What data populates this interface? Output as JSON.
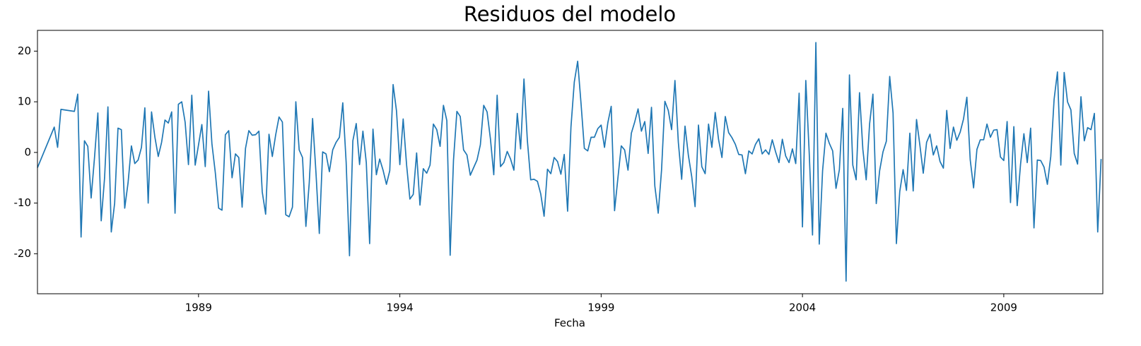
{
  "chart_data": {
    "type": "line",
    "title": "Residuos del modelo",
    "xlabel": "Fecha",
    "x": [
      1985.0,
      1985.417,
      1985.5,
      1985.583,
      1985.917,
      1986.0,
      1986.083,
      1986.167,
      1986.25,
      1986.333,
      1986.417,
      1986.5,
      1986.583,
      1986.667,
      1986.75,
      1986.833,
      1986.917,
      1987.0,
      1987.083,
      1987.167,
      1987.25,
      1987.333,
      1987.417,
      1987.5,
      1987.583,
      1987.667,
      1987.75,
      1987.833,
      1987.917,
      1988.0,
      1988.083,
      1988.167,
      1988.25,
      1988.333,
      1988.417,
      1988.5,
      1988.583,
      1988.667,
      1988.75,
      1988.833,
      1988.917,
      1989.0,
      1989.083,
      1989.167,
      1989.25,
      1989.333,
      1989.417,
      1989.5,
      1989.583,
      1989.667,
      1989.75,
      1989.833,
      1989.917,
      1990.0,
      1990.083,
      1990.167,
      1990.25,
      1990.333,
      1990.417,
      1990.5,
      1990.583,
      1990.667,
      1990.75,
      1990.833,
      1990.917,
      1991.0,
      1991.083,
      1991.167,
      1991.25,
      1991.333,
      1991.417,
      1991.5,
      1991.583,
      1991.667,
      1991.75,
      1991.833,
      1991.917,
      1992.0,
      1992.083,
      1992.167,
      1992.25,
      1992.333,
      1992.417,
      1992.5,
      1992.583,
      1992.667,
      1992.75,
      1992.833,
      1992.917,
      1993.0,
      1993.083,
      1993.167,
      1993.25,
      1993.333,
      1993.417,
      1993.5,
      1993.583,
      1993.667,
      1993.75,
      1993.833,
      1993.917,
      1994.0,
      1994.083,
      1994.167,
      1994.25,
      1994.333,
      1994.417,
      1994.5,
      1994.583,
      1994.667,
      1994.75,
      1994.833,
      1994.917,
      1995.0,
      1995.083,
      1995.167,
      1995.25,
      1995.333,
      1995.417,
      1995.5,
      1995.583,
      1995.667,
      1995.75,
      1995.833,
      1995.917,
      1996.0,
      1996.083,
      1996.167,
      1996.25,
      1996.333,
      1996.417,
      1996.5,
      1996.583,
      1996.667,
      1996.75,
      1996.833,
      1996.917,
      1997.0,
      1997.083,
      1997.167,
      1997.25,
      1997.333,
      1997.417,
      1997.5,
      1997.583,
      1997.667,
      1997.75,
      1997.833,
      1997.917,
      1998.0,
      1998.083,
      1998.167,
      1998.25,
      1998.333,
      1998.417,
      1998.5,
      1998.583,
      1998.667,
      1998.75,
      1998.833,
      1998.917,
      1999.0,
      1999.083,
      1999.167,
      1999.25,
      1999.333,
      1999.417,
      1999.5,
      1999.583,
      1999.667,
      1999.75,
      1999.833,
      1999.917,
      2000.0,
      2000.083,
      2000.167,
      2000.25,
      2000.333,
      2000.417,
      2000.5,
      2000.583,
      2000.667,
      2000.75,
      2000.833,
      2000.917,
      2001.0,
      2001.083,
      2001.167,
      2001.25,
      2001.333,
      2001.417,
      2001.5,
      2001.583,
      2001.667,
      2001.75,
      2001.833,
      2001.917,
      2002.0,
      2002.083,
      2002.167,
      2002.25,
      2002.333,
      2002.417,
      2002.5,
      2002.583,
      2002.667,
      2002.75,
      2002.833,
      2002.917,
      2003.0,
      2003.083,
      2003.167,
      2003.25,
      2003.333,
      2003.417,
      2003.5,
      2003.583,
      2003.667,
      2003.75,
      2003.833,
      2003.917,
      2004.0,
      2004.083,
      2004.167,
      2004.25,
      2004.333,
      2004.417,
      2004.5,
      2004.583,
      2004.667,
      2004.75,
      2004.833,
      2004.917,
      2005.0,
      2005.083,
      2005.167,
      2005.25,
      2005.333,
      2005.417,
      2005.5,
      2005.583,
      2005.667,
      2005.75,
      2005.833,
      2005.917,
      2006.0,
      2006.083,
      2006.167,
      2006.25,
      2006.333,
      2006.417,
      2006.5,
      2006.583,
      2006.667,
      2006.75,
      2006.833,
      2006.917,
      2007.0,
      2007.083,
      2007.167,
      2007.25,
      2007.333,
      2007.417,
      2007.5,
      2007.583,
      2007.667,
      2007.75,
      2007.833,
      2007.917,
      2008.0,
      2008.083,
      2008.167,
      2008.25,
      2008.333,
      2008.417,
      2008.5,
      2008.583,
      2008.667,
      2008.75,
      2008.833,
      2008.917,
      2009.0,
      2009.083,
      2009.167,
      2009.25,
      2009.333,
      2009.417,
      2009.5,
      2009.583,
      2009.667,
      2009.75,
      2009.833,
      2009.917,
      2010.0,
      2010.083,
      2010.167,
      2010.25,
      2010.333,
      2010.417,
      2010.5,
      2010.583,
      2010.667,
      2010.75,
      2010.833,
      2010.917,
      2011.0,
      2011.083,
      2011.167,
      2011.25,
      2011.333,
      2011.417
    ],
    "series": [
      {
        "color": "#1f77b4",
        "values": [
          -3,
          5,
          1,
          8.5,
          8.1,
          11.5,
          -16.7,
          2.3,
          1.2,
          -9,
          -1,
          7.8,
          -13.5,
          -5,
          9,
          -15.7,
          -10,
          4.8,
          4.5,
          -11,
          -6,
          1.3,
          -2.2,
          -1.5,
          1,
          8.8,
          -10,
          8,
          3,
          -0.8,
          2,
          6.4,
          5.8,
          8,
          -12,
          9.5,
          10,
          6,
          -2.4,
          11.3,
          -2.5,
          1.5,
          5.5,
          -2.8,
          12.1,
          1.7,
          -4,
          -11,
          -11.4,
          3.5,
          4.3,
          -5,
          -0.3,
          -1,
          -10.8,
          0.8,
          4.3,
          3.4,
          3.5,
          4.2,
          -7.8,
          -12.2,
          3.6,
          -0.8,
          3.5,
          7,
          6,
          -12.3,
          -12.7,
          -10.8,
          10,
          0.5,
          -1,
          -14.6,
          -6,
          6.7,
          -4,
          -16,
          0.1,
          -0.3,
          -3.8,
          0.5,
          2,
          3,
          9.8,
          -2,
          -20.4,
          2.3,
          5.7,
          -2.4,
          4.2,
          -2,
          -18,
          4.6,
          -4.4,
          -1.3,
          -3.5,
          -6.3,
          -3.6,
          13.4,
          8.2,
          -2.4,
          6.6,
          -2.4,
          -9.2,
          -8.3,
          -0.1,
          -10.4,
          -3.2,
          -4.1,
          -2.5,
          5.6,
          4.5,
          1.2,
          9.3,
          6.3,
          -20.3,
          -1.5,
          8.1,
          7.1,
          0.5,
          -0.5,
          -4.5,
          -3,
          -1.5,
          1.5,
          9.3,
          8,
          2.7,
          -4.4,
          11.3,
          -2.8,
          -2,
          0.2,
          -1.3,
          -3.5,
          7.7,
          0.7,
          14.5,
          2.4,
          -5.4,
          -5.3,
          -5.7,
          -8.2,
          -12.6,
          -3.3,
          -4.2,
          -1,
          -1.8,
          -4.3,
          -0.4,
          -11.6,
          5,
          13.9,
          18,
          9.7,
          0.8,
          0.3,
          3,
          3,
          4.7,
          5.4,
          1,
          5.9,
          9.1,
          -11.5,
          -5,
          1.3,
          0.5,
          -3.5,
          3.8,
          6,
          8.6,
          4.2,
          6.1,
          -0.2,
          8.9,
          -6.6,
          -12,
          -3.5,
          10.1,
          8.3,
          4.5,
          14.2,
          2,
          -5.3,
          5.2,
          -0.6,
          -4.8,
          -10.7,
          5.4,
          -2.8,
          -4.2,
          5.6,
          1,
          7.9,
          2.5,
          -1,
          7.1,
          3.9,
          2.9,
          1.6,
          -0.4,
          -0.5,
          -4.2,
          0.3,
          -0.3,
          1.6,
          2.7,
          -0.3,
          0.5,
          -0.4,
          2.5,
          0.1,
          -2,
          2.6,
          -0.7,
          -2,
          0.7,
          -2.2,
          11.7,
          -14.7,
          14.2,
          0,
          -16.3,
          21.7,
          -18.1,
          -3.6,
          3.8,
          1.8,
          0.3,
          -7.1,
          -3.4,
          8.7,
          -25.4,
          15.3,
          -2.5,
          -5.4,
          11.8,
          0.6,
          -5.4,
          5.6,
          11.5,
          -10.1,
          -3.6,
          0.1,
          2.2,
          15,
          7.8,
          -18,
          -7.7,
          -3.4,
          -7.5,
          3.8,
          -7.6,
          6.5,
          1.4,
          -4.1,
          2,
          3.6,
          -0.5,
          1.3,
          -1.8,
          -3.1,
          8.3,
          0.8,
          5,
          2.4,
          4,
          6.6,
          10.9,
          -1.5,
          -7,
          0.6,
          2.5,
          2.5,
          5.6,
          3,
          4.4,
          4.5,
          -0.9,
          -1.6,
          6.1,
          -9.9,
          5.1,
          -10.5,
          -2.3,
          3.7,
          -2,
          4.8,
          -14.9,
          -1.5,
          -1.6,
          -2.9,
          -6.3,
          -0.8,
          10.5,
          15.9,
          -2.5,
          15.8,
          10,
          8.4,
          -0.2,
          -2.3,
          11,
          2.3,
          4.9,
          4.5,
          7.7,
          -15.7,
          -1.3
        ]
      }
    ],
    "xlim": [
      1985.0,
      2011.46
    ],
    "xticks": [
      1989,
      1994,
      1999,
      2004,
      2009
    ],
    "ylim": [
      -27.9,
      24.1
    ],
    "yticks": [
      -20,
      -10,
      0,
      10,
      20
    ]
  }
}
